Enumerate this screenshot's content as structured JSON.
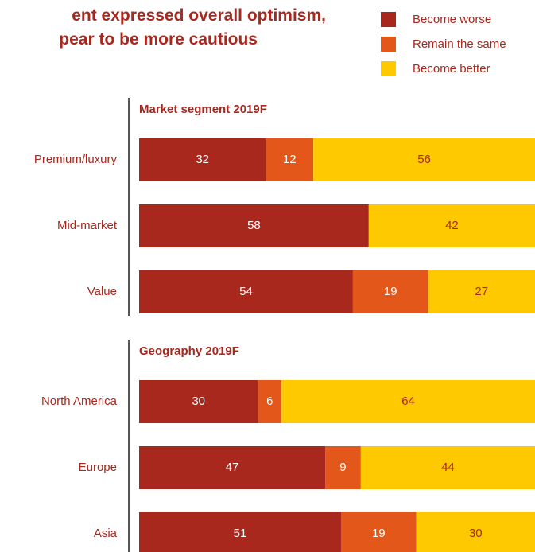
{
  "colors": {
    "worse": "#A8281E",
    "same": "#E4571A",
    "better": "#FFC900",
    "text_dark": "#A8281E",
    "axis": "#555555"
  },
  "title_lines": [
    "ent expressed overall optimism,",
    "pear to be more cautious"
  ],
  "legend": [
    {
      "label": "Become worse",
      "color": "#A8281E"
    },
    {
      "label": "Remain the same",
      "color": "#E4571A"
    },
    {
      "label": "Become better",
      "color": "#FFC900"
    }
  ],
  "chart_data": [
    {
      "type": "bar",
      "orientation": "horizontal",
      "stacked": true,
      "title": "Market segment 2019F",
      "categories": [
        "Premium/luxury",
        "Mid-market",
        "Value"
      ],
      "series": [
        {
          "name": "Become worse",
          "values": [
            32,
            58,
            54
          ]
        },
        {
          "name": "Remain the same",
          "values": [
            12,
            0,
            19
          ]
        },
        {
          "name": "Become better",
          "values": [
            56,
            42,
            27
          ]
        }
      ],
      "xlim": [
        0,
        100
      ]
    },
    {
      "type": "bar",
      "orientation": "horizontal",
      "stacked": true,
      "title": "Geography 2019F",
      "categories": [
        "North America",
        "Europe",
        "Asia"
      ],
      "series": [
        {
          "name": "Become worse",
          "values": [
            30,
            47,
            51
          ]
        },
        {
          "name": "Remain the same",
          "values": [
            6,
            9,
            19
          ]
        },
        {
          "name": "Become better",
          "values": [
            64,
            44,
            30
          ]
        }
      ],
      "xlim": [
        0,
        100
      ]
    }
  ]
}
